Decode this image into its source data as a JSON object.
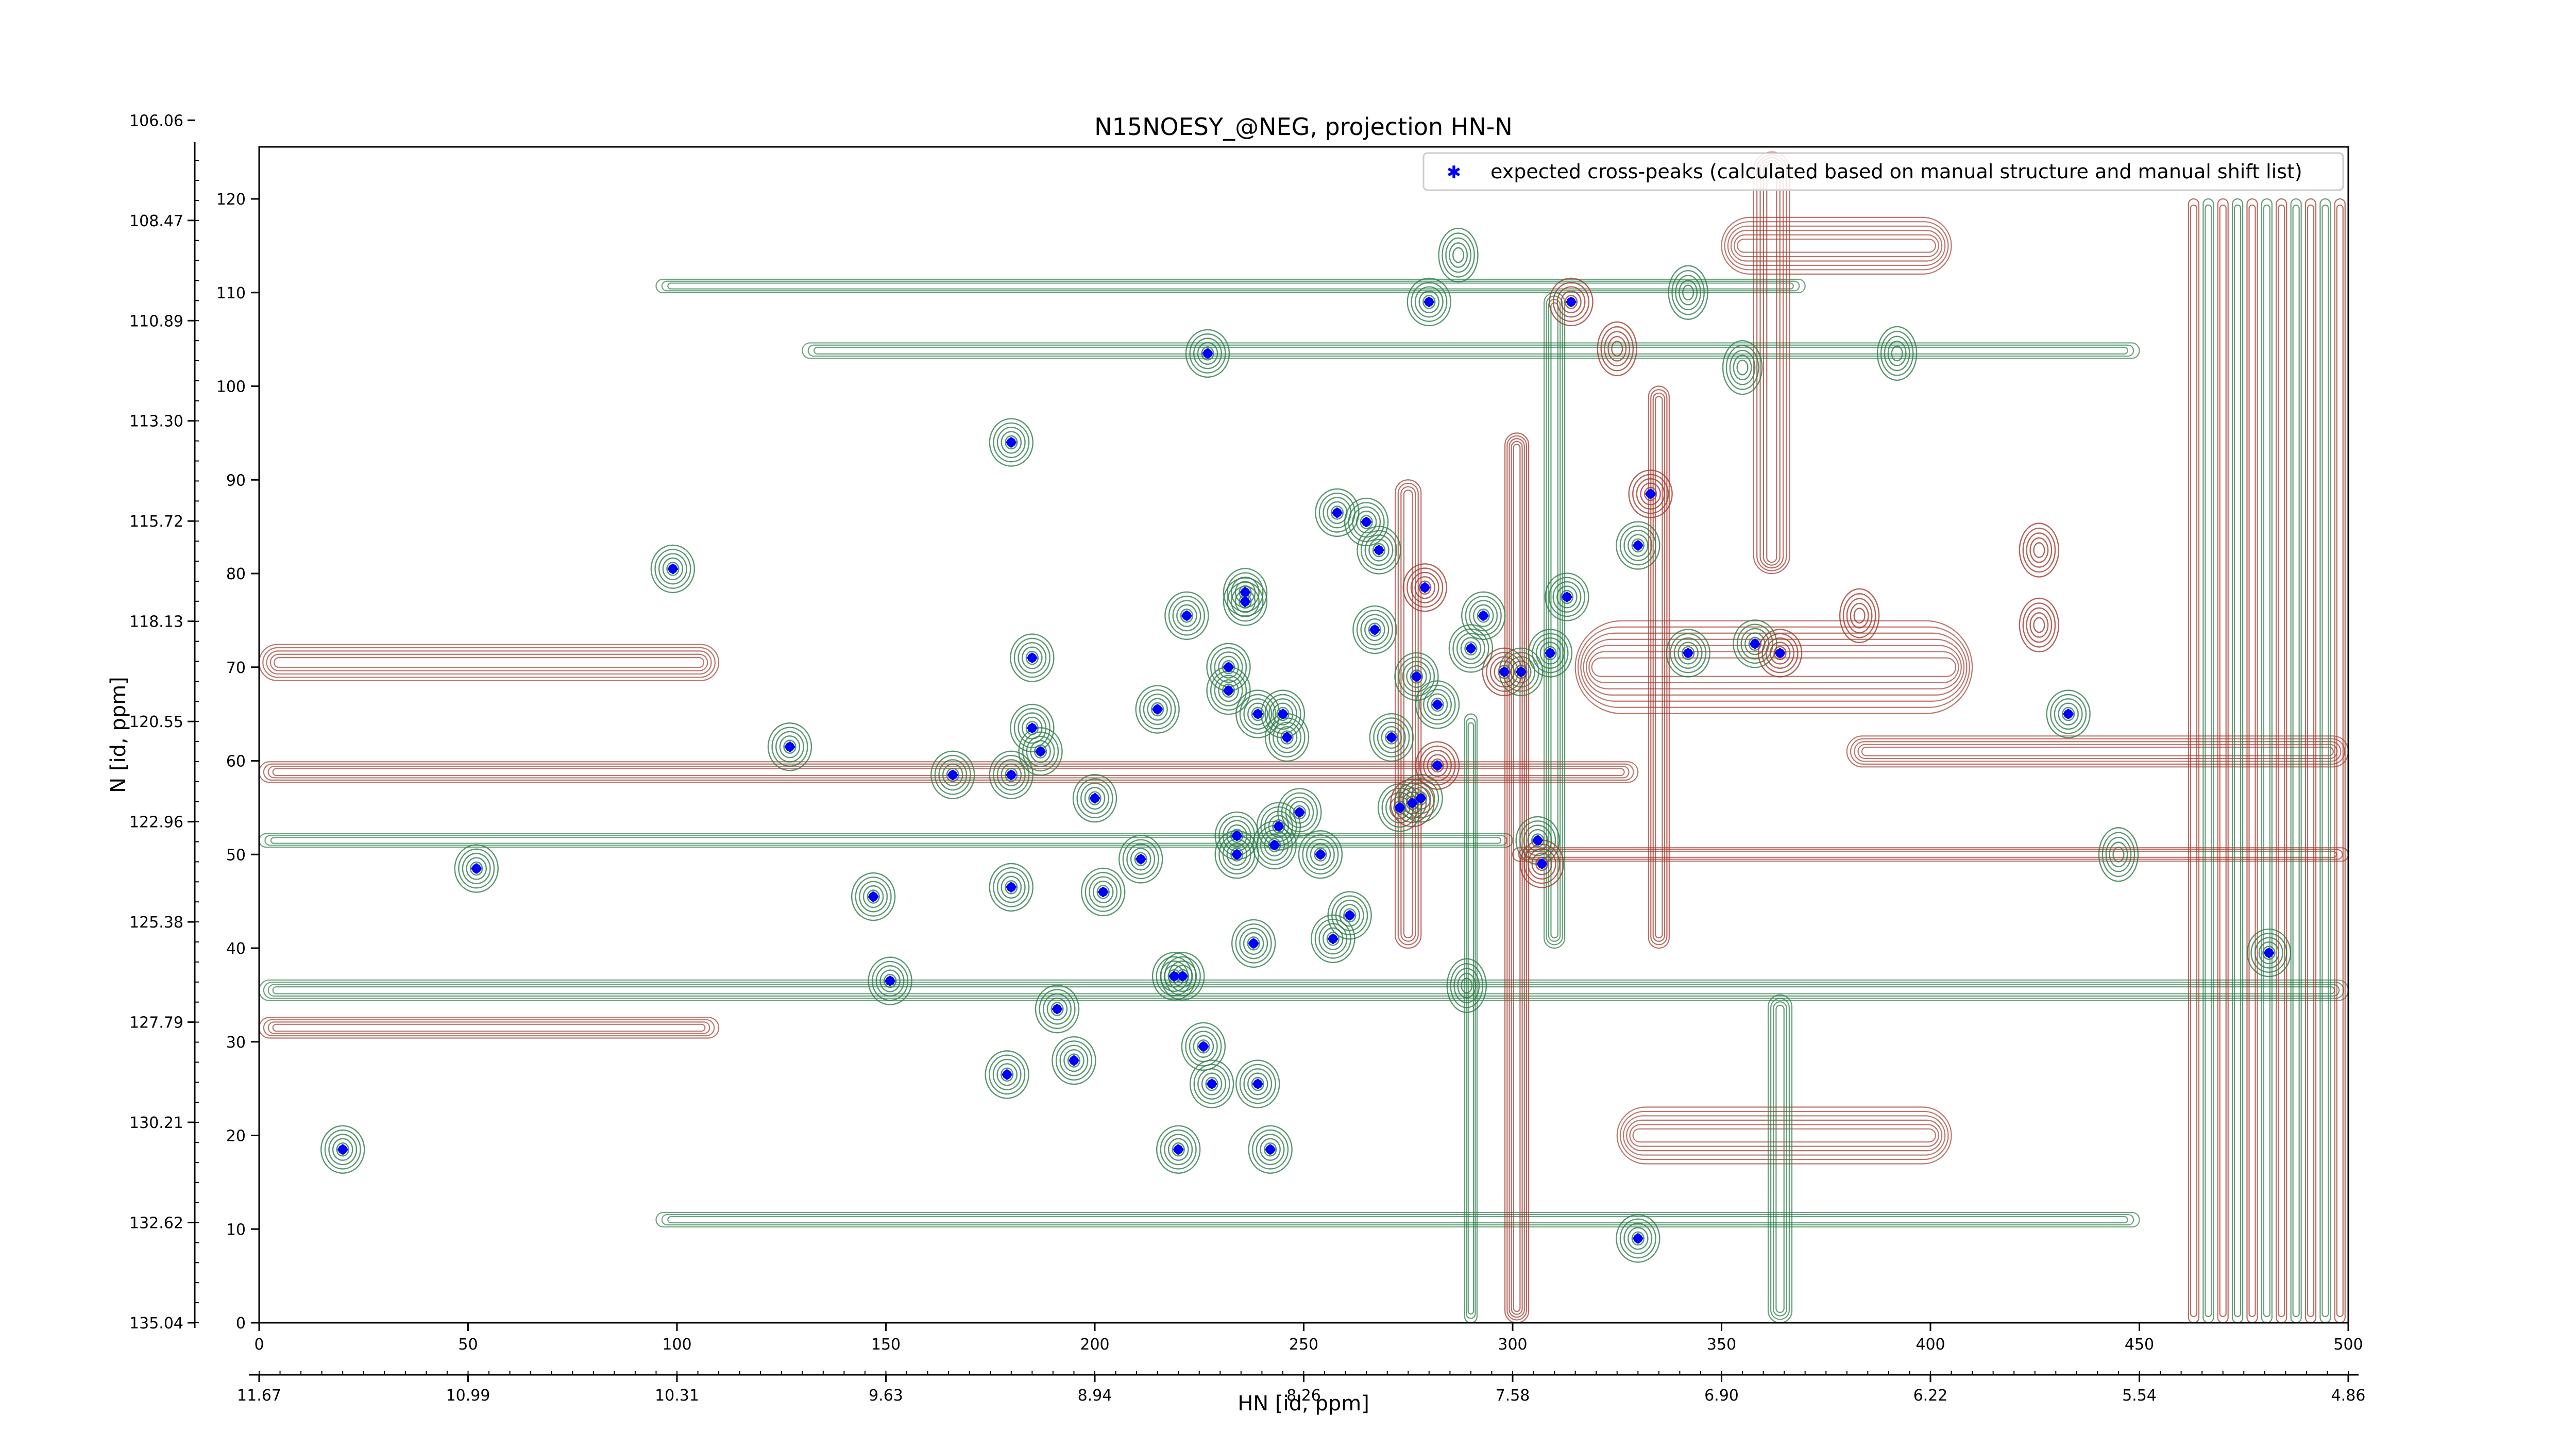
{
  "chart_data": {
    "type": "scatter",
    "title": "N15NOESY_@NEG, projection HN-N",
    "xlabel": "HN [id, ppm]",
    "ylabel": "N [id, ppm]",
    "index_xlim": [
      0,
      500
    ],
    "index_ylim": [
      0,
      125
    ],
    "index_x_ticks": [
      0,
      50,
      100,
      150,
      200,
      250,
      300,
      350,
      400,
      450,
      500
    ],
    "index_y_ticks": [
      0,
      10,
      20,
      30,
      40,
      50,
      60,
      70,
      80,
      90,
      100,
      110,
      120
    ],
    "ppm_x_ticks": [
      {
        "i": 0,
        "label": "11.67"
      },
      {
        "i": 50,
        "label": "10.99"
      },
      {
        "i": 100,
        "label": "10.31"
      },
      {
        "i": 150,
        "label": "9.63"
      },
      {
        "i": 200,
        "label": "8.94"
      },
      {
        "i": 250,
        "label": "8.26"
      },
      {
        "i": 300,
        "label": "7.58"
      },
      {
        "i": 350,
        "label": "6.90"
      },
      {
        "i": 400,
        "label": "6.22"
      },
      {
        "i": 450,
        "label": "5.54"
      },
      {
        "i": 500,
        "label": "4.86"
      }
    ],
    "ppm_y_ticks": [
      {
        "i": 0,
        "label": "135.04"
      },
      {
        "i": 10.7,
        "label": "132.62"
      },
      {
        "i": 21.4,
        "label": "130.21"
      },
      {
        "i": 32.1,
        "label": "127.79"
      },
      {
        "i": 42.8,
        "label": "125.38"
      },
      {
        "i": 53.5,
        "label": "122.96"
      },
      {
        "i": 64.2,
        "label": "120.55"
      },
      {
        "i": 74.9,
        "label": "118.13"
      },
      {
        "i": 85.6,
        "label": "115.72"
      },
      {
        "i": 96.3,
        "label": "113.30"
      },
      {
        "i": 107.0,
        "label": "110.89"
      },
      {
        "i": 117.7,
        "label": "108.47"
      },
      {
        "i": 128.4,
        "label": "106.06"
      }
    ],
    "legend": {
      "label": "expected cross-peaks (calculated based on manual structure and manual shift list)",
      "position": "top-right"
    },
    "series": [
      {
        "name": "expected cross-peaks (calculated based on manual structure and manual shift list)",
        "color": "#0000ff",
        "points": [
          [
            20,
            18.5
          ],
          [
            52,
            48.5
          ],
          [
            99,
            80.5
          ],
          [
            127,
            61.5
          ],
          [
            147,
            45.5
          ],
          [
            151,
            36.5
          ],
          [
            166,
            58.5
          ],
          [
            180,
            94
          ],
          [
            180,
            58.5
          ],
          [
            180,
            46.5
          ],
          [
            179,
            26.5
          ],
          [
            185,
            71
          ],
          [
            185,
            63.5
          ],
          [
            187,
            61
          ],
          [
            191,
            33.5
          ],
          [
            195,
            28
          ],
          [
            200,
            56
          ],
          [
            202,
            46
          ],
          [
            211,
            49.5
          ],
          [
            215,
            65.5
          ],
          [
            219,
            37
          ],
          [
            221,
            37
          ],
          [
            220,
            18.5
          ],
          [
            222,
            75.5
          ],
          [
            226,
            29.5
          ],
          [
            227,
            103.5
          ],
          [
            228,
            25.5
          ],
          [
            232,
            70
          ],
          [
            232,
            67.5
          ],
          [
            234,
            52
          ],
          [
            234,
            50
          ],
          [
            236,
            78
          ],
          [
            236,
            77
          ],
          [
            238,
            40.5
          ],
          [
            239,
            65
          ],
          [
            239,
            25.5
          ],
          [
            242,
            18.5
          ],
          [
            243,
            51
          ],
          [
            244,
            53
          ],
          [
            245,
            65
          ],
          [
            246,
            62.5
          ],
          [
            249,
            54.5
          ],
          [
            254,
            50
          ],
          [
            257,
            41
          ],
          [
            258,
            86.5
          ],
          [
            261,
            43.5
          ],
          [
            265,
            85.5
          ],
          [
            267,
            74
          ],
          [
            268,
            82.5
          ],
          [
            271,
            62.5
          ],
          [
            273,
            55
          ],
          [
            276,
            55.5
          ],
          [
            278,
            56
          ],
          [
            277,
            69
          ],
          [
            279,
            78.5
          ],
          [
            280,
            109
          ],
          [
            282,
            66
          ],
          [
            282,
            59.5
          ],
          [
            290,
            72
          ],
          [
            293,
            75.5
          ],
          [
            298,
            69.5
          ],
          [
            302,
            69.5
          ],
          [
            306,
            51.5
          ],
          [
            307,
            49
          ],
          [
            309,
            71.5
          ],
          [
            313,
            77.5
          ],
          [
            314,
            109
          ],
          [
            330,
            83
          ],
          [
            330,
            9
          ],
          [
            333,
            88.5
          ],
          [
            342,
            71.5
          ],
          [
            358,
            72.5
          ],
          [
            364,
            71.5
          ],
          [
            433,
            65
          ],
          [
            481,
            39.5
          ]
        ]
      }
    ]
  }
}
